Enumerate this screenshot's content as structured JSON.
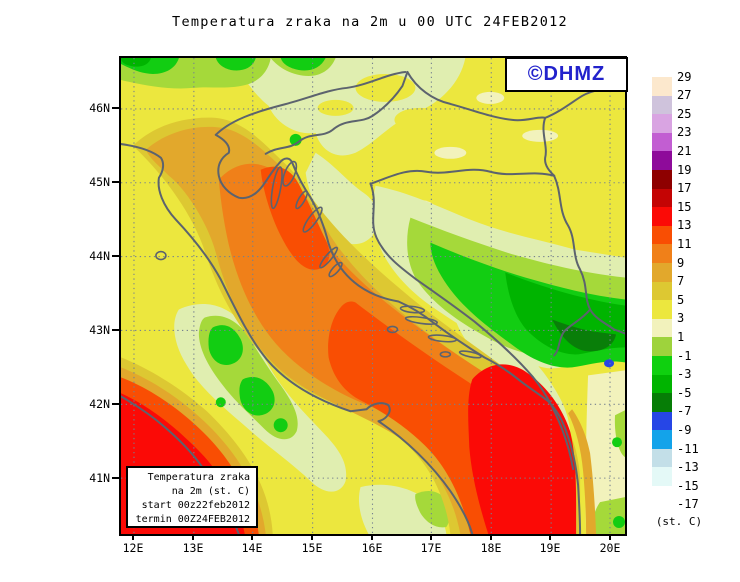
{
  "title": "Temperatura zraka na 2m u 00 UTC 24FEB2012",
  "watermark": {
    "text": "©DHMZ",
    "color": "#2222cc"
  },
  "info_box": {
    "lines": [
      "Temperatura zraka",
      "na 2m (st. C)",
      "start 00z22feb2012",
      "termin 00Z24FEB2012"
    ]
  },
  "axes": {
    "lat": [
      "46N",
      "45N",
      "44N",
      "43N",
      "42N",
      "41N"
    ],
    "lon": [
      "12E",
      "13E",
      "14E",
      "15E",
      "16E",
      "17E",
      "18E",
      "19E",
      "20E"
    ]
  },
  "colorbar": {
    "unit": "(st. C)",
    "ticks": [
      "29",
      "27",
      "25",
      "23",
      "21",
      "19",
      "17",
      "15",
      "13",
      "11",
      "9",
      "7",
      "5",
      "3",
      "1",
      "-1",
      "-3",
      "-5",
      "-7",
      "-9",
      "-11",
      "-13",
      "-15",
      "-17"
    ],
    "cell_colors": [
      "#fce8cd",
      "#cfc3dc",
      "#d9a4e2",
      "#c25ed2",
      "#8e0b9a",
      "#8e0000",
      "#c40404",
      "#fb0a06",
      "#f94e03",
      "#f08019",
      "#e2a82c",
      "#ddc832",
      "#ece73e",
      "#f2f2bc",
      "#9ed33c",
      "#0fd00f",
      "#00b400",
      "#067d06",
      "#2646e6",
      "#13a3ea",
      "#c3dfe8",
      "#e4f9f7",
      "#ffffff"
    ]
  },
  "chart_data": {
    "type": "heatmap",
    "title": "Temperatura zraka na 2m u 00 UTC 24FEB2012",
    "variable": "air temperature at 2 m",
    "units": "st. C",
    "valid_time": "00 UTC 24FEB2012",
    "run_start": "00z22feb2012",
    "lon_ticks": [
      "12E",
      "13E",
      "14E",
      "15E",
      "16E",
      "17E",
      "18E",
      "19E",
      "20E"
    ],
    "lat_ticks": [
      "46N",
      "45N",
      "44N",
      "43N",
      "42N",
      "41N"
    ],
    "scale_levels": [
      29,
      27,
      25,
      23,
      21,
      19,
      17,
      15,
      13,
      11,
      9,
      7,
      5,
      3,
      1,
      -1,
      -3,
      -5,
      -7,
      -9,
      -11,
      -13,
      -15,
      -17
    ],
    "scale_colors": [
      "#fce8cd",
      "#cfc3dc",
      "#d9a4e2",
      "#c25ed2",
      "#8e0b9a",
      "#8e0000",
      "#c40404",
      "#fb0a06",
      "#f94e03",
      "#f08019",
      "#e2a82c",
      "#ddc832",
      "#ece73e",
      "#f2f2bc",
      "#9ed33c",
      "#0fd00f",
      "#00b400",
      "#067d06",
      "#2646e6",
      "#13a3ea",
      "#c3dfe8",
      "#e4f9f7",
      "#ffffff"
    ],
    "legend_position": "right",
    "grid": "dotted, 1 degree",
    "notable_features": {
      "adriatic_sea": "9 to 13 st.C (orange), south Adriatic core 13-15 st.C (red)",
      "tyrrhenian_corner_sw": "13-15 st.C (red)",
      "pannonian_land": "3-5 st.C (yellow)",
      "dinarides_bosnia": "-1 to -7 st.C (greens), one -7 to -9 spot (blue)",
      "apennines": "-1 to -5 st.C (greens)"
    }
  }
}
